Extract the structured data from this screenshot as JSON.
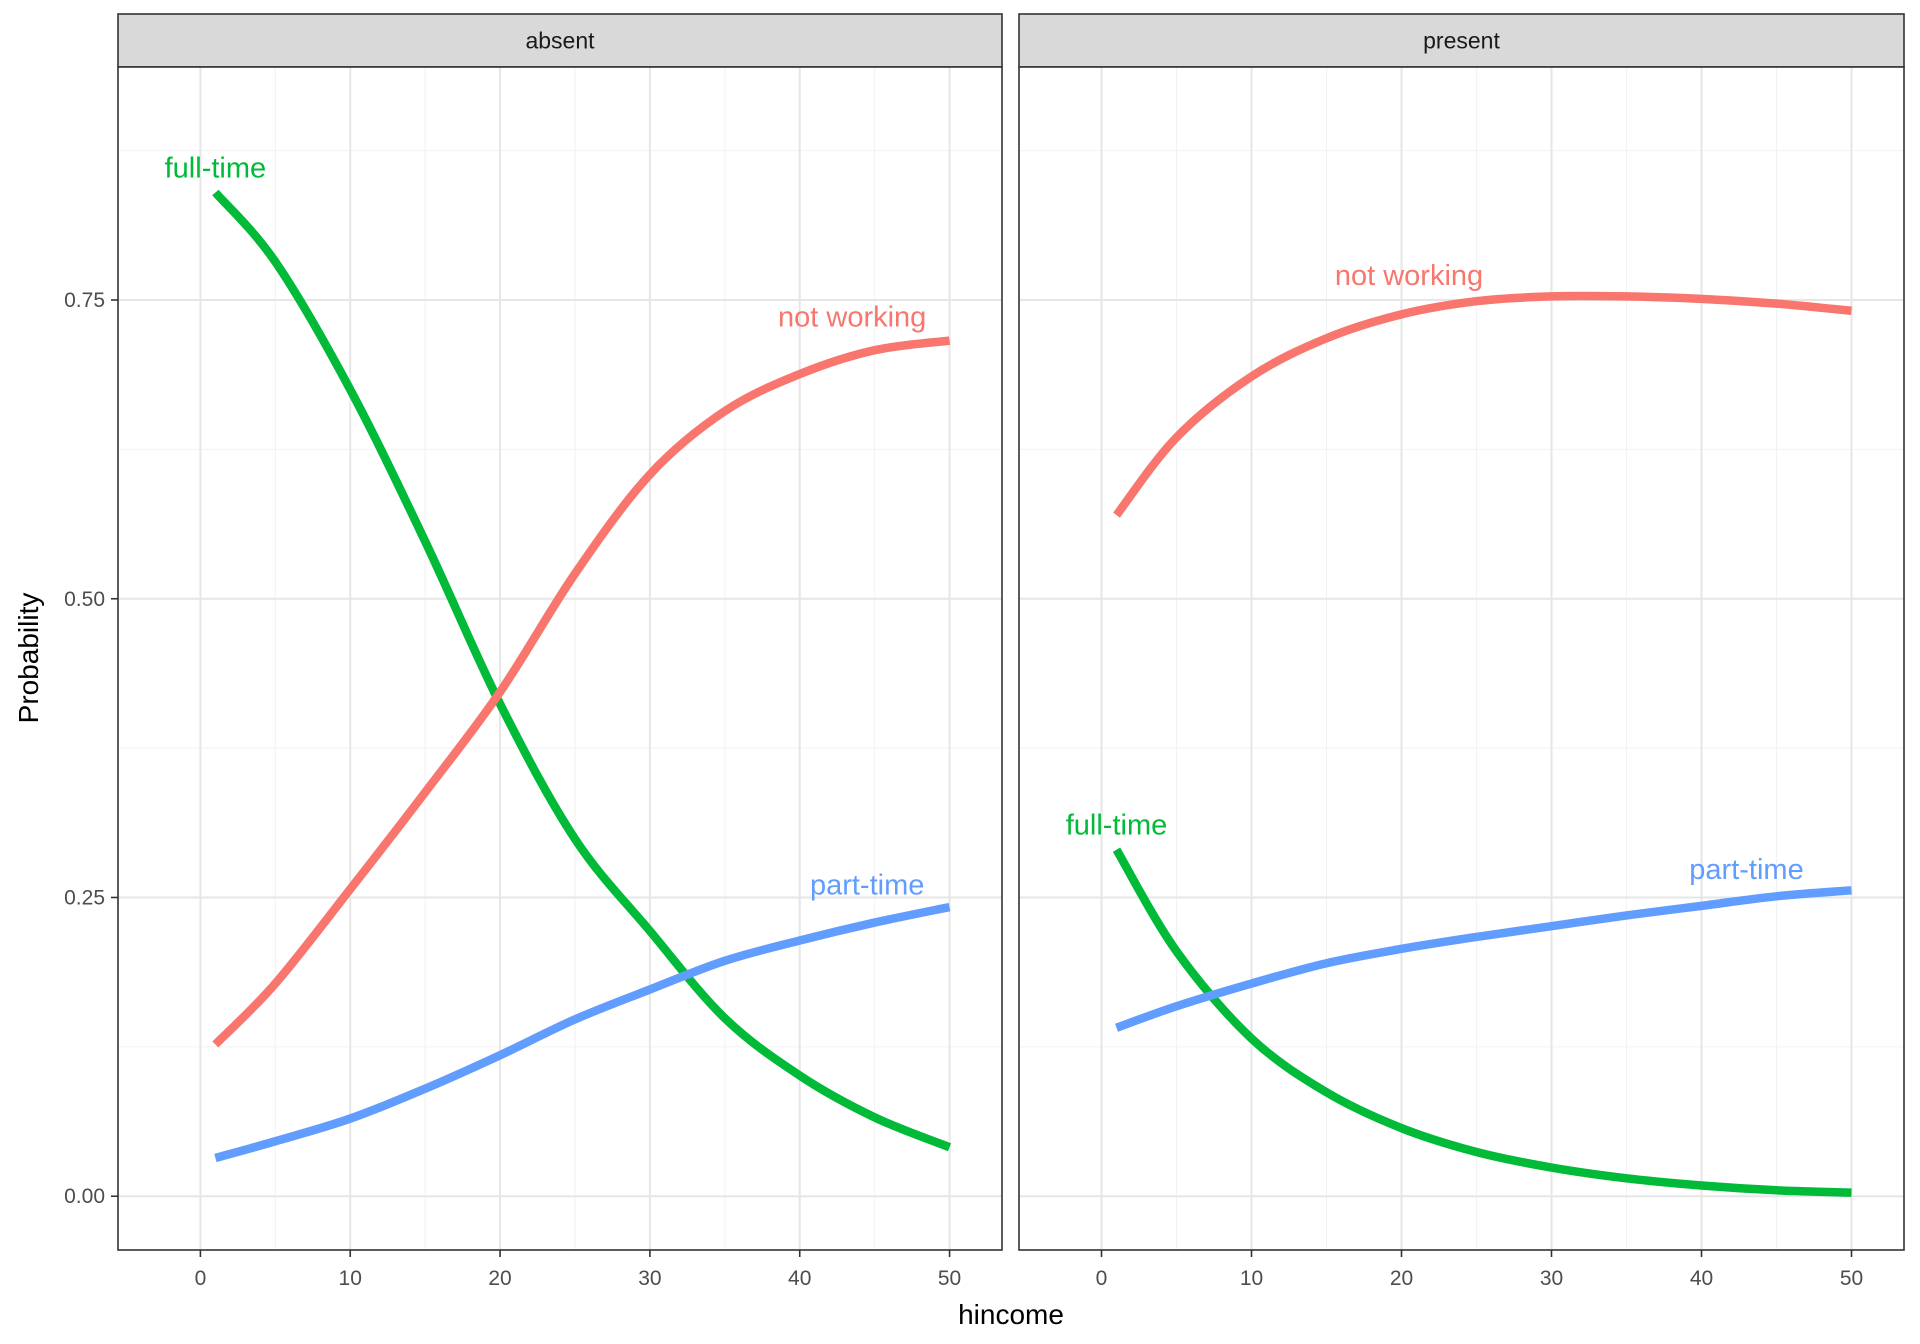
{
  "chart_data": {
    "type": "line",
    "facet_variable": "strip",
    "xlabel": "hincome",
    "ylabel": "Probability",
    "xlim": [
      -5.5,
      53.5
    ],
    "ylim": [
      -0.045,
      0.945
    ],
    "x_ticks": [
      0,
      10,
      20,
      30,
      40,
      50
    ],
    "x_tick_labels": [
      "0",
      "10",
      "20",
      "30",
      "40",
      "50"
    ],
    "y_ticks": [
      0,
      0.25,
      0.5,
      0.75
    ],
    "y_tick_labels": [
      "0.00",
      "0.25",
      "0.50",
      "0.75"
    ],
    "grid": true,
    "legend": "none",
    "colors": {
      "not working": "#F8766D",
      "part-time": "#619CFF",
      "full-time": "#00BA38"
    },
    "panels": [
      {
        "strip": "absent",
        "series": [
          {
            "name": "full-time",
            "color": "#00BA38",
            "x": [
              1,
              5,
              10,
              15,
              20,
              25,
              30,
              35,
              40,
              45,
              50
            ],
            "y": [
              0.84,
              0.782,
              0.675,
              0.548,
              0.412,
              0.299,
              0.222,
              0.149,
              0.101,
              0.066,
              0.041
            ]
          },
          {
            "name": "not working",
            "color": "#F8766D",
            "x": [
              1,
              5,
              10,
              15,
              20,
              25,
              30,
              35,
              40,
              45,
              50
            ],
            "y": [
              0.127,
              0.178,
              0.257,
              0.338,
              0.422,
              0.521,
              0.604,
              0.657,
              0.688,
              0.708,
              0.716
            ]
          },
          {
            "name": "part-time",
            "color": "#619CFF",
            "x": [
              1,
              5,
              10,
              15,
              20,
              25,
              30,
              35,
              40,
              45,
              50
            ],
            "y": [
              0.032,
              0.046,
              0.065,
              0.09,
              0.118,
              0.148,
              0.173,
              0.197,
              0.214,
              0.229,
              0.242
            ]
          }
        ]
      },
      {
        "strip": "present",
        "series": [
          {
            "name": "full-time",
            "color": "#00BA38",
            "x": [
              1,
              5,
              10,
              15,
              20,
              25,
              30,
              35,
              40,
              45,
              50
            ],
            "y": [
              0.29,
              0.205,
              0.132,
              0.087,
              0.057,
              0.037,
              0.024,
              0.015,
              0.009,
              0.005,
              0.003
            ]
          },
          {
            "name": "not working",
            "color": "#F8766D",
            "x": [
              1,
              5,
              10,
              15,
              20,
              25,
              30,
              35,
              40,
              45,
              50
            ],
            "y": [
              0.57,
              0.635,
              0.686,
              0.718,
              0.738,
              0.749,
              0.753,
              0.753,
              0.751,
              0.747,
              0.741
            ]
          },
          {
            "name": "part-time",
            "color": "#619CFF",
            "x": [
              1,
              5,
              10,
              15,
              20,
              25,
              30,
              35,
              40,
              45,
              50
            ],
            "y": [
              0.141,
              0.159,
              0.178,
              0.195,
              0.207,
              0.217,
              0.226,
              0.235,
              0.243,
              0.251,
              0.256
            ]
          }
        ]
      }
    ],
    "annotations": [
      {
        "panel": 0,
        "text": "full-time",
        "series": "full-time",
        "x": 1,
        "y": 0.861
      },
      {
        "panel": 0,
        "text": "not working",
        "series": "not working",
        "x": 43.5,
        "y": 0.736
      },
      {
        "panel": 0,
        "text": "part-time",
        "series": "part-time",
        "x": 44.5,
        "y": 0.261
      },
      {
        "panel": 1,
        "text": "full-time",
        "series": "full-time",
        "x": 1,
        "y": 0.311
      },
      {
        "panel": 1,
        "text": "not working",
        "series": "not working",
        "x": 20.5,
        "y": 0.771
      },
      {
        "panel": 1,
        "text": "part-time",
        "series": "part-time",
        "x": 43,
        "y": 0.274
      }
    ]
  }
}
